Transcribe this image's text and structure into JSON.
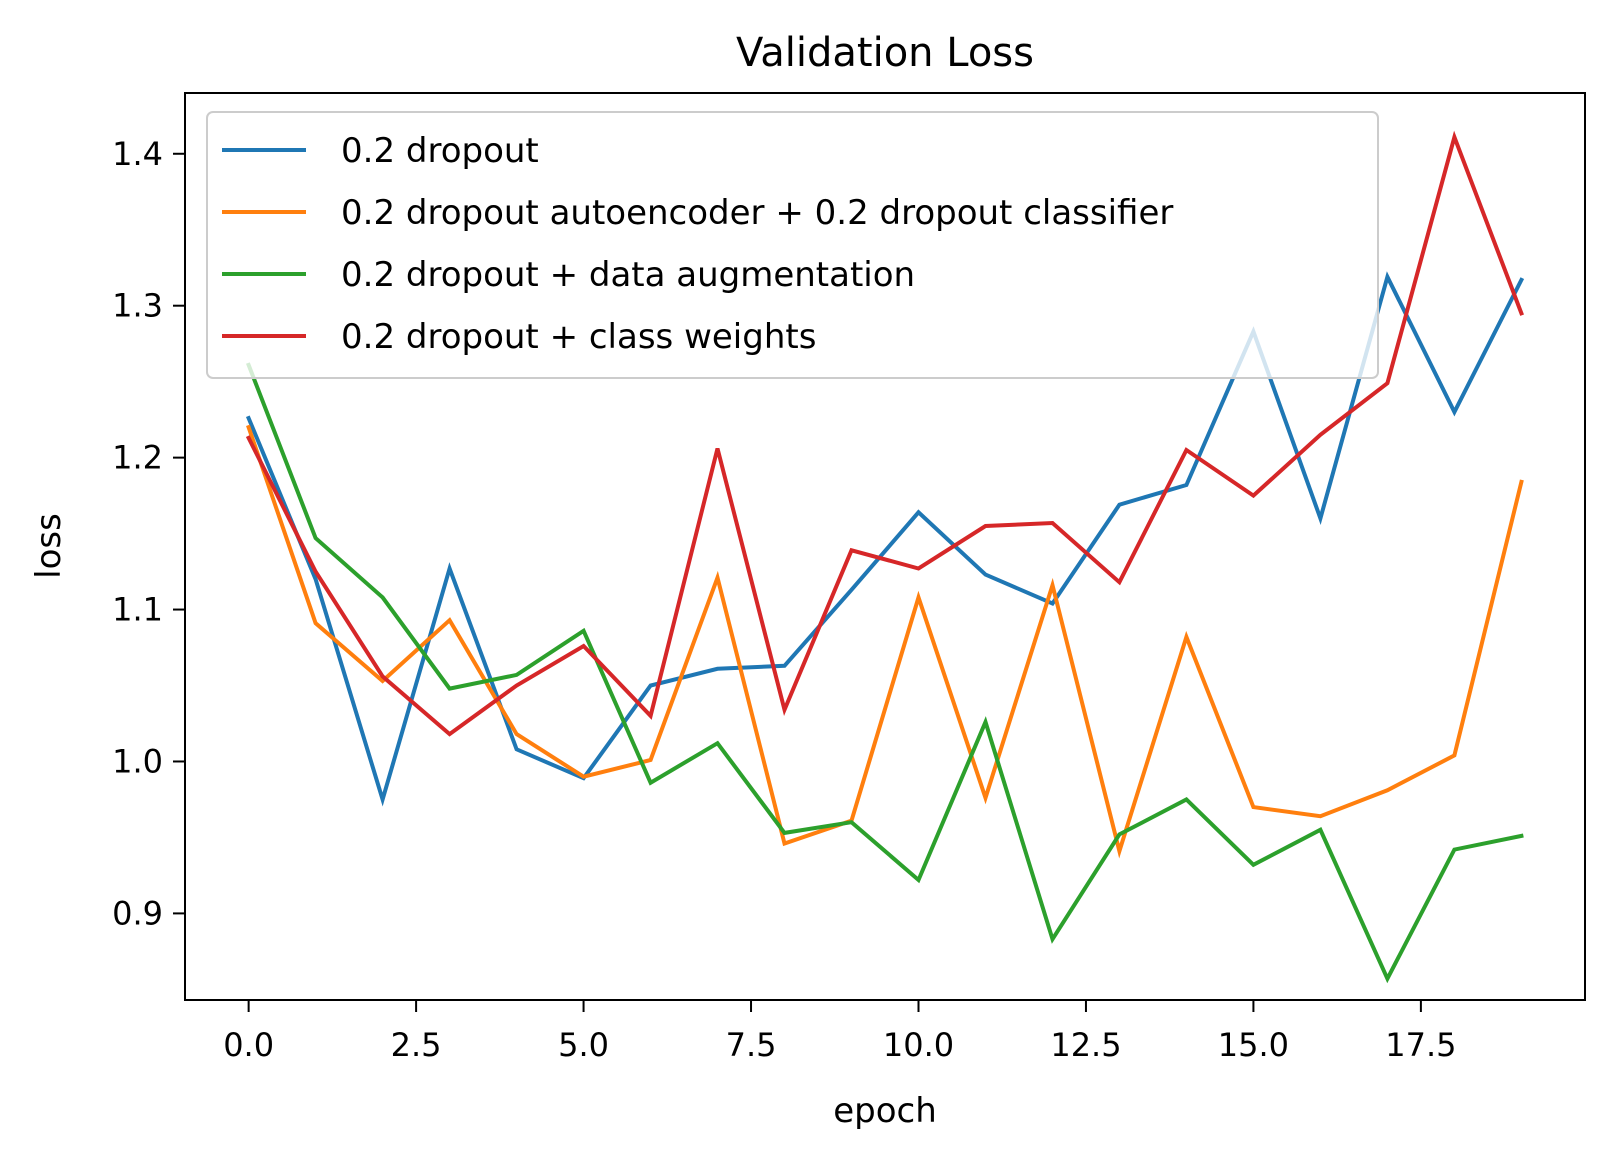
{
  "chart_data": {
    "type": "line",
    "title": "Validation Loss",
    "xlabel": "epoch",
    "ylabel": "loss",
    "xlim": [
      -0.95,
      19.95
    ],
    "ylim": [
      0.843,
      1.44
    ],
    "xticks": [
      0.0,
      2.5,
      5.0,
      7.5,
      10.0,
      12.5,
      15.0,
      17.5
    ],
    "xtick_labels": [
      "0.0",
      "2.5",
      "5.0",
      "7.5",
      "10.0",
      "12.5",
      "15.0",
      "17.5"
    ],
    "yticks": [
      0.9,
      1.0,
      1.1,
      1.2,
      1.3,
      1.4
    ],
    "ytick_labels": [
      "0.9",
      "1.0",
      "1.1",
      "1.2",
      "1.3",
      "1.4"
    ],
    "grid": false,
    "legend_position": "top-left",
    "x": [
      0,
      1,
      2,
      3,
      4,
      5,
      6,
      7,
      8,
      9,
      10,
      11,
      12,
      13,
      14,
      15,
      16,
      17,
      18,
      19
    ],
    "series": [
      {
        "name": "0.2 dropout",
        "color": "#1f77b4",
        "values": [
          1.226,
          1.12,
          0.975,
          1.127,
          1.008,
          0.989,
          1.05,
          1.061,
          1.063,
          1.113,
          1.164,
          1.123,
          1.104,
          1.169,
          1.182,
          1.283,
          1.16,
          1.319,
          1.23,
          1.317
        ]
      },
      {
        "name": "0.2 dropout autoencoder + 0.2 dropout classifier",
        "color": "#ff7f0e",
        "values": [
          1.22,
          1.091,
          1.053,
          1.093,
          1.018,
          0.99,
          1.001,
          1.121,
          0.946,
          0.961,
          1.108,
          0.976,
          1.116,
          0.941,
          1.082,
          0.97,
          0.964,
          0.981,
          1.004,
          1.184
        ]
      },
      {
        "name": "0.2 dropout + data augmentation",
        "color": "#2ca02c",
        "values": [
          1.261,
          1.147,
          1.108,
          1.048,
          1.057,
          1.086,
          0.986,
          1.012,
          0.953,
          0.96,
          0.922,
          1.026,
          0.883,
          0.952,
          0.975,
          0.932,
          0.955,
          0.857,
          0.942,
          0.951
        ]
      },
      {
        "name": "0.2 dropout + class weights",
        "color": "#d62728",
        "values": [
          1.213,
          1.125,
          1.056,
          1.018,
          1.05,
          1.076,
          1.03,
          1.206,
          1.034,
          1.139,
          1.127,
          1.155,
          1.157,
          1.118,
          1.205,
          1.175,
          1.215,
          1.249,
          1.411,
          1.295
        ]
      }
    ]
  }
}
